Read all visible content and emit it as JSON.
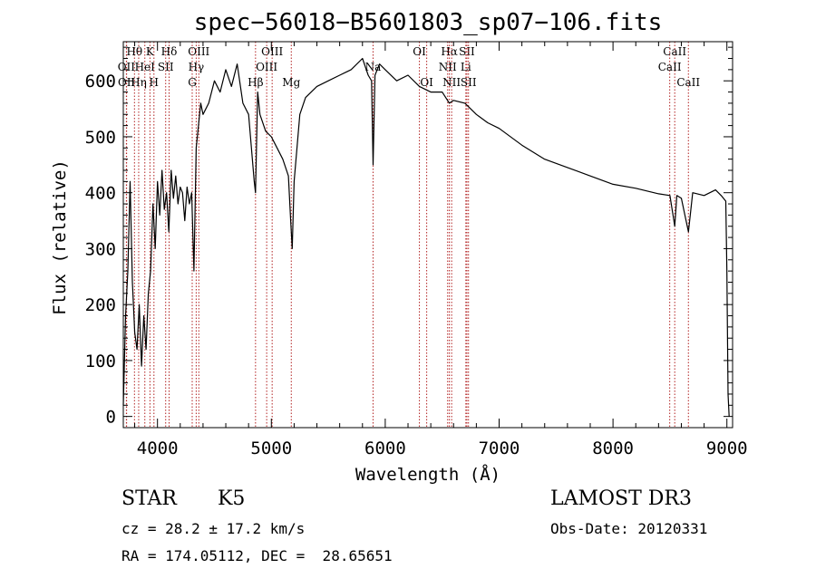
{
  "chart_data": {
    "type": "line",
    "title": "spec−56018−B5601803_sp07−106.fits",
    "xlabel": "Wavelength (Å)",
    "ylabel": "Flux (relative)",
    "xlim": [
      3700,
      9050
    ],
    "ylim": [
      -20,
      670
    ],
    "xticks": [
      4000,
      5000,
      6000,
      7000,
      8000,
      9000
    ],
    "yticks": [
      0,
      100,
      200,
      300,
      400,
      500,
      600
    ],
    "line_color": "#000000",
    "marker_color": "#b22222",
    "spectrum": {
      "name": "flux",
      "x": [
        3700,
        3720,
        3740,
        3760,
        3780,
        3800,
        3820,
        3840,
        3860,
        3880,
        3900,
        3920,
        3940,
        3960,
        3980,
        4000,
        4020,
        4040,
        4060,
        4080,
        4100,
        4120,
        4140,
        4160,
        4180,
        4200,
        4220,
        4240,
        4260,
        4280,
        4300,
        4320,
        4340,
        4360,
        4380,
        4400,
        4450,
        4500,
        4550,
        4600,
        4650,
        4700,
        4750,
        4800,
        4850,
        4861,
        4880,
        4900,
        4950,
        5000,
        5050,
        5100,
        5150,
        5170,
        5183,
        5200,
        5250,
        5300,
        5400,
        5500,
        5600,
        5700,
        5800,
        5850,
        5880,
        5893,
        5910,
        5950,
        6000,
        6100,
        6200,
        6300,
        6400,
        6500,
        6563,
        6600,
        6700,
        6800,
        6900,
        7000,
        7200,
        7400,
        7600,
        7800,
        8000,
        8200,
        8400,
        8500,
        8542,
        8560,
        8600,
        8662,
        8700,
        8800,
        8900,
        8950,
        8990,
        9000,
        9010,
        9020
      ],
      "y": [
        20,
        180,
        260,
        420,
        240,
        150,
        120,
        200,
        90,
        180,
        120,
        220,
        260,
        380,
        300,
        420,
        360,
        440,
        370,
        400,
        330,
        440,
        390,
        430,
        380,
        410,
        400,
        350,
        410,
        380,
        400,
        260,
        480,
        520,
        560,
        540,
        560,
        600,
        580,
        620,
        590,
        630,
        560,
        540,
        420,
        400,
        580,
        540,
        510,
        500,
        480,
        460,
        430,
        350,
        300,
        420,
        540,
        570,
        590,
        600,
        610,
        620,
        640,
        610,
        600,
        450,
        610,
        630,
        620,
        600,
        610,
        590,
        580,
        580,
        560,
        565,
        560,
        540,
        525,
        515,
        485,
        460,
        445,
        430,
        415,
        408,
        398,
        395,
        340,
        395,
        390,
        330,
        400,
        395,
        405,
        395,
        385,
        260,
        40,
        0
      ]
    },
    "lines": [
      {
        "label": "Hθ",
        "wave": 3798,
        "row": 0
      },
      {
        "label": "OII",
        "wave": 3727,
        "row": 1
      },
      {
        "label": "OII",
        "wave": 3729,
        "row": 2
      },
      {
        "label": "K",
        "wave": 3934,
        "row": 0
      },
      {
        "label": "HeI",
        "wave": 3889,
        "row": 1
      },
      {
        "label": "Hη",
        "wave": 3835,
        "row": 2
      },
      {
        "label": "Hδ",
        "wave": 4102,
        "row": 0
      },
      {
        "label": "SII",
        "wave": 4072,
        "row": 1
      },
      {
        "label": "H",
        "wave": 3969,
        "row": 2
      },
      {
        "label": "OIII",
        "wave": 4363,
        "row": 0
      },
      {
        "label": "Hγ",
        "wave": 4340,
        "row": 1
      },
      {
        "label": "G",
        "wave": 4305,
        "row": 2
      },
      {
        "label": "OIII",
        "wave": 5007,
        "row": 0
      },
      {
        "label": "OIII",
        "wave": 4959,
        "row": 1
      },
      {
        "label": "Hβ",
        "wave": 4861,
        "row": 2
      },
      {
        "label": "Mg",
        "wave": 5175,
        "row": 2
      },
      {
        "label": "Na",
        "wave": 5893,
        "row": 1
      },
      {
        "label": "OI",
        "wave": 6300,
        "row": 0
      },
      {
        "label": "OI",
        "wave": 6364,
        "row": 2
      },
      {
        "label": "Hα",
        "wave": 6563,
        "row": 0
      },
      {
        "label": "NII",
        "wave": 6548,
        "row": 1
      },
      {
        "label": "NII",
        "wave": 6583,
        "row": 2
      },
      {
        "label": "SII",
        "wave": 6717,
        "row": 0
      },
      {
        "label": "Li",
        "wave": 6708,
        "row": 1
      },
      {
        "label": "SII",
        "wave": 6731,
        "row": 2
      },
      {
        "label": "CaII",
        "wave": 8542,
        "row": 0
      },
      {
        "label": "CaII",
        "wave": 8498,
        "row": 1
      },
      {
        "label": "CaII",
        "wave": 8662,
        "row": 2
      }
    ]
  },
  "info": {
    "object_class": "STAR",
    "subclass": "K5",
    "survey": "LAMOST DR3",
    "cz": "cz = 28.2 ± 17.2 km/s",
    "obs_date": "Obs-Date: 20120331",
    "coords": "RA = 174.05112, DEC =  28.65651"
  }
}
